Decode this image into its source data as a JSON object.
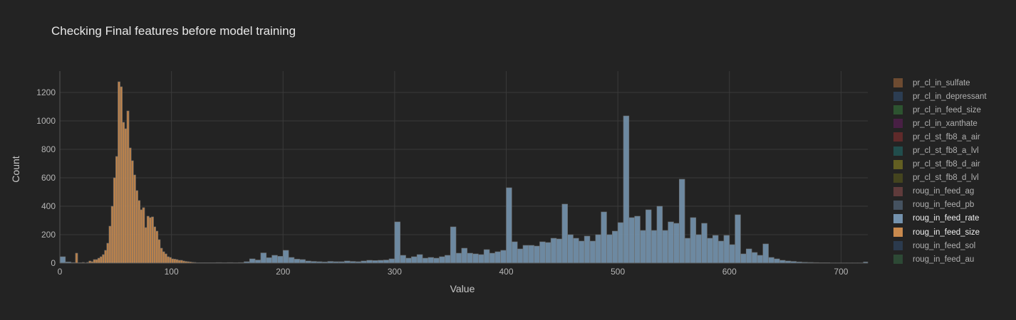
{
  "title": "Checking Final features before model training",
  "chart_data": {
    "type": "bar",
    "title": "Checking Final features before model training",
    "xlabel": "Value",
    "ylabel": "Count",
    "xlim": [
      0,
      724
    ],
    "ylim": [
      0,
      1350
    ],
    "xticks": [
      0,
      100,
      200,
      300,
      400,
      500,
      600,
      700
    ],
    "yticks": [
      0,
      200,
      400,
      600,
      800,
      1000,
      1200
    ],
    "grid": true,
    "legend_position": "right",
    "series": [
      {
        "name": "pr_cl_in_sulfate",
        "color": "#7a5234",
        "visible": false
      },
      {
        "name": "pr_cl_in_depressant",
        "color": "#2e425a",
        "visible": false
      },
      {
        "name": "pr_cl_in_feed_size",
        "color": "#2f5c33",
        "visible": false
      },
      {
        "name": "pr_cl_in_xanthate",
        "color": "#4f1f4a",
        "visible": false
      },
      {
        "name": "pr_cl_st_fb8_a_air",
        "color": "#6a2b2b",
        "visible": false
      },
      {
        "name": "pr_cl_st_fb8_a_lvl",
        "color": "#215553",
        "visible": false
      },
      {
        "name": "pr_cl_st_fb8_d_air",
        "color": "#6e6a22",
        "visible": false
      },
      {
        "name": "pr_cl_st_fb8_d_lvl",
        "color": "#4a4a1d",
        "visible": false
      },
      {
        "name": "roug_in_feed_ag",
        "color": "#6a3f3f",
        "visible": false
      },
      {
        "name": "roug_in_feed_pb",
        "color": "#4b5b6b",
        "visible": false
      },
      {
        "name": "roug_in_feed_rate",
        "color": "#7492ad",
        "visible": true,
        "bin_width": 5,
        "bins": [
          [
            0,
            45
          ],
          [
            5,
            8
          ],
          [
            10,
            4
          ],
          [
            15,
            3
          ],
          [
            20,
            2
          ],
          [
            25,
            5
          ],
          [
            30,
            6
          ],
          [
            35,
            7
          ],
          [
            40,
            8
          ],
          [
            45,
            8
          ],
          [
            50,
            8
          ],
          [
            55,
            7
          ],
          [
            60,
            6
          ],
          [
            65,
            6
          ],
          [
            70,
            5
          ],
          [
            75,
            5
          ],
          [
            80,
            5
          ],
          [
            85,
            4
          ],
          [
            90,
            4
          ],
          [
            95,
            4
          ],
          [
            100,
            4
          ],
          [
            105,
            4
          ],
          [
            110,
            4
          ],
          [
            115,
            4
          ],
          [
            120,
            3
          ],
          [
            125,
            3
          ],
          [
            130,
            3
          ],
          [
            135,
            3
          ],
          [
            140,
            4
          ],
          [
            145,
            3
          ],
          [
            150,
            4
          ],
          [
            155,
            3
          ],
          [
            160,
            4
          ],
          [
            165,
            10
          ],
          [
            170,
            30
          ],
          [
            175,
            22
          ],
          [
            180,
            72
          ],
          [
            185,
            38
          ],
          [
            190,
            55
          ],
          [
            195,
            48
          ],
          [
            200,
            90
          ],
          [
            205,
            40
          ],
          [
            210,
            28
          ],
          [
            215,
            25
          ],
          [
            220,
            15
          ],
          [
            225,
            12
          ],
          [
            230,
            10
          ],
          [
            235,
            8
          ],
          [
            240,
            12
          ],
          [
            245,
            10
          ],
          [
            250,
            10
          ],
          [
            255,
            15
          ],
          [
            260,
            12
          ],
          [
            265,
            10
          ],
          [
            270,
            15
          ],
          [
            275,
            20
          ],
          [
            280,
            18
          ],
          [
            285,
            20
          ],
          [
            290,
            22
          ],
          [
            295,
            30
          ],
          [
            300,
            290
          ],
          [
            305,
            55
          ],
          [
            310,
            35
          ],
          [
            315,
            45
          ],
          [
            320,
            60
          ],
          [
            325,
            35
          ],
          [
            330,
            40
          ],
          [
            335,
            35
          ],
          [
            340,
            45
          ],
          [
            345,
            55
          ],
          [
            350,
            255
          ],
          [
            355,
            70
          ],
          [
            360,
            105
          ],
          [
            365,
            70
          ],
          [
            370,
            65
          ],
          [
            375,
            60
          ],
          [
            380,
            95
          ],
          [
            385,
            70
          ],
          [
            390,
            80
          ],
          [
            395,
            90
          ],
          [
            400,
            530
          ],
          [
            405,
            150
          ],
          [
            410,
            100
          ],
          [
            415,
            125
          ],
          [
            420,
            125
          ],
          [
            425,
            120
          ],
          [
            430,
            150
          ],
          [
            435,
            145
          ],
          [
            440,
            175
          ],
          [
            445,
            170
          ],
          [
            450,
            415
          ],
          [
            455,
            200
          ],
          [
            460,
            175
          ],
          [
            465,
            155
          ],
          [
            470,
            190
          ],
          [
            475,
            155
          ],
          [
            480,
            200
          ],
          [
            485,
            360
          ],
          [
            490,
            200
          ],
          [
            495,
            225
          ],
          [
            500,
            285
          ],
          [
            505,
            1035
          ],
          [
            510,
            320
          ],
          [
            515,
            330
          ],
          [
            520,
            230
          ],
          [
            525,
            375
          ],
          [
            530,
            230
          ],
          [
            535,
            400
          ],
          [
            540,
            230
          ],
          [
            545,
            290
          ],
          [
            550,
            280
          ],
          [
            555,
            590
          ],
          [
            560,
            175
          ],
          [
            565,
            320
          ],
          [
            570,
            200
          ],
          [
            575,
            280
          ],
          [
            580,
            175
          ],
          [
            585,
            195
          ],
          [
            590,
            155
          ],
          [
            595,
            195
          ],
          [
            600,
            130
          ],
          [
            605,
            340
          ],
          [
            610,
            65
          ],
          [
            615,
            100
          ],
          [
            620,
            75
          ],
          [
            625,
            55
          ],
          [
            630,
            135
          ],
          [
            635,
            40
          ],
          [
            640,
            30
          ],
          [
            645,
            20
          ],
          [
            650,
            15
          ],
          [
            655,
            12
          ],
          [
            660,
            8
          ],
          [
            665,
            6
          ],
          [
            670,
            5
          ],
          [
            675,
            4
          ],
          [
            680,
            3
          ],
          [
            685,
            3
          ],
          [
            690,
            2
          ],
          [
            695,
            2
          ],
          [
            700,
            2
          ],
          [
            705,
            2
          ],
          [
            710,
            2
          ],
          [
            715,
            2
          ],
          [
            720,
            8
          ]
        ]
      },
      {
        "name": "roug_in_feed_size",
        "color": "#c98a4e",
        "visible": true,
        "bin_width": 2,
        "bins": [
          [
            14,
            70
          ],
          [
            20,
            5
          ],
          [
            24,
            5
          ],
          [
            26,
            15
          ],
          [
            28,
            10
          ],
          [
            30,
            25
          ],
          [
            32,
            25
          ],
          [
            34,
            35
          ],
          [
            36,
            45
          ],
          [
            38,
            60
          ],
          [
            40,
            90
          ],
          [
            42,
            140
          ],
          [
            44,
            260
          ],
          [
            46,
            400
          ],
          [
            48,
            600
          ],
          [
            50,
            750
          ],
          [
            52,
            1275
          ],
          [
            54,
            1240
          ],
          [
            56,
            990
          ],
          [
            58,
            945
          ],
          [
            60,
            1070
          ],
          [
            62,
            810
          ],
          [
            64,
            720
          ],
          [
            66,
            620
          ],
          [
            68,
            510
          ],
          [
            70,
            440
          ],
          [
            72,
            375
          ],
          [
            74,
            390
          ],
          [
            76,
            250
          ],
          [
            78,
            330
          ],
          [
            80,
            320
          ],
          [
            82,
            325
          ],
          [
            84,
            255
          ],
          [
            86,
            225
          ],
          [
            88,
            165
          ],
          [
            90,
            105
          ],
          [
            92,
            80
          ],
          [
            94,
            65
          ],
          [
            96,
            45
          ],
          [
            98,
            40
          ],
          [
            100,
            30
          ],
          [
            102,
            28
          ],
          [
            104,
            25
          ],
          [
            106,
            20
          ],
          [
            108,
            20
          ],
          [
            110,
            15
          ],
          [
            112,
            12
          ],
          [
            114,
            10
          ],
          [
            116,
            8
          ],
          [
            118,
            6
          ],
          [
            120,
            5
          ]
        ]
      },
      {
        "name": "roug_in_feed_sol",
        "color": "#2d3e55",
        "visible": false
      },
      {
        "name": "roug_in_feed_au",
        "color": "#2f5038",
        "visible": false
      }
    ]
  }
}
